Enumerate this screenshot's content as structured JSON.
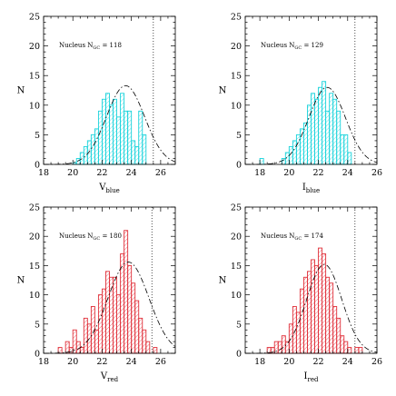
{
  "chart_data": [
    {
      "type": "bar",
      "panel": "top-left",
      "annotation": "Nucleus N",
      "annotation_sub": "GC",
      "annotation_value": " = 118",
      "xlabel": "V",
      "xlabel_sub": "blue",
      "ylabel": "N",
      "xlim": [
        18,
        27
      ],
      "ylim": [
        0,
        25
      ],
      "xticks": [
        18,
        20,
        22,
        24,
        26
      ],
      "yticks": [
        0,
        5,
        10,
        15,
        20,
        25
      ],
      "bin_width": 0.25,
      "bins_start": [
        20.0,
        20.25,
        20.5,
        20.75,
        21.0,
        21.25,
        21.5,
        21.75,
        22.0,
        22.25,
        22.5,
        22.75,
        23.0,
        23.25,
        23.5,
        23.75,
        24.0,
        24.25,
        24.5,
        24.75
      ],
      "counts": [
        0.3,
        1,
        2,
        3,
        4,
        5,
        6,
        9,
        11,
        12,
        10,
        11,
        8,
        12,
        9,
        9,
        4,
        3,
        9,
        5
      ],
      "gaussian": {
        "mean": 23.6,
        "sigma": 1.3,
        "peak": 13.3
      },
      "limit_x": 25.5,
      "color": "#19d3db"
    },
    {
      "type": "bar",
      "panel": "top-right",
      "annotation": "Nucleus N",
      "annotation_sub": "GC",
      "annotation_value": " = 129",
      "xlabel": "I",
      "xlabel_sub": "blue",
      "ylabel": "N",
      "xlim": [
        17,
        26
      ],
      "ylim": [
        0,
        25
      ],
      "xticks": [
        18,
        20,
        22,
        24,
        26
      ],
      "yticks": [
        0,
        5,
        10,
        15,
        20,
        25
      ],
      "bin_width": 0.25,
      "bins_start": [
        18.0,
        19.5,
        19.75,
        20.0,
        20.25,
        20.5,
        20.75,
        21.0,
        21.25,
        21.5,
        21.75,
        22.0,
        22.25,
        22.5,
        22.75,
        23.0,
        23.25,
        23.5,
        23.75,
        24.0
      ],
      "counts": [
        1,
        1,
        2,
        3,
        4,
        5,
        6,
        7,
        10,
        12,
        11,
        13,
        14,
        9,
        12,
        11,
        9,
        5,
        5,
        2
      ],
      "gaussian": {
        "mean": 22.6,
        "sigma": 1.25,
        "peak": 13.0
      },
      "limit_x": 24.5,
      "color": "#19d3db"
    },
    {
      "type": "bar",
      "panel": "bottom-left",
      "annotation": "Nucleus N",
      "annotation_sub": "GC",
      "annotation_value": " = 180",
      "xlabel": "V",
      "xlabel_sub": "red",
      "ylabel": "N",
      "xlim": [
        18,
        27
      ],
      "ylim": [
        0,
        25
      ],
      "xticks": [
        18,
        20,
        22,
        24,
        26
      ],
      "yticks": [
        0,
        5,
        10,
        15,
        20,
        25
      ],
      "bin_width": 0.25,
      "bins_start": [
        19.0,
        19.25,
        19.5,
        19.75,
        20.0,
        20.25,
        20.5,
        20.75,
        21.0,
        21.25,
        21.5,
        21.75,
        22.0,
        22.25,
        22.5,
        22.75,
        23.0,
        23.25,
        23.5,
        23.75,
        24.0,
        24.25,
        24.5,
        24.75,
        25.0,
        25.25,
        25.5
      ],
      "counts": [
        1,
        0,
        2,
        1,
        4,
        2,
        1,
        6,
        5,
        8,
        4,
        10,
        11,
        14,
        13,
        13,
        10,
        17,
        21,
        15,
        12,
        9,
        6,
        4,
        2,
        0,
        1
      ],
      "gaussian": {
        "mean": 23.8,
        "sigma": 1.4,
        "peak": 15.6
      },
      "limit_x": 25.4,
      "color": "#e0303a"
    },
    {
      "type": "bar",
      "panel": "bottom-right",
      "annotation": "Nucleus N",
      "annotation_sub": "GC",
      "annotation_value": " = 174",
      "xlabel": "I",
      "xlabel_sub": "red",
      "ylabel": "N",
      "xlim": [
        17,
        26
      ],
      "ylim": [
        0,
        25
      ],
      "xticks": [
        18,
        20,
        22,
        24,
        26
      ],
      "yticks": [
        0,
        5,
        10,
        15,
        20,
        25
      ],
      "bin_width": 0.25,
      "bins_start": [
        18.5,
        18.75,
        19.0,
        19.25,
        19.5,
        19.75,
        20.0,
        20.25,
        20.5,
        20.75,
        21.0,
        21.25,
        21.5,
        21.75,
        22.0,
        22.25,
        22.5,
        22.75,
        23.0,
        23.25,
        23.5,
        23.75,
        24.0,
        24.5,
        24.75
      ],
      "counts": [
        1,
        1,
        2,
        2,
        3,
        2,
        5,
        8,
        7,
        11,
        13,
        14,
        16,
        15,
        18,
        17,
        13,
        12,
        8,
        6,
        3,
        2,
        1,
        1,
        1
      ],
      "gaussian": {
        "mean": 22.4,
        "sigma": 1.2,
        "peak": 15.2
      },
      "limit_x": 24.5,
      "color": "#e0303a"
    }
  ]
}
